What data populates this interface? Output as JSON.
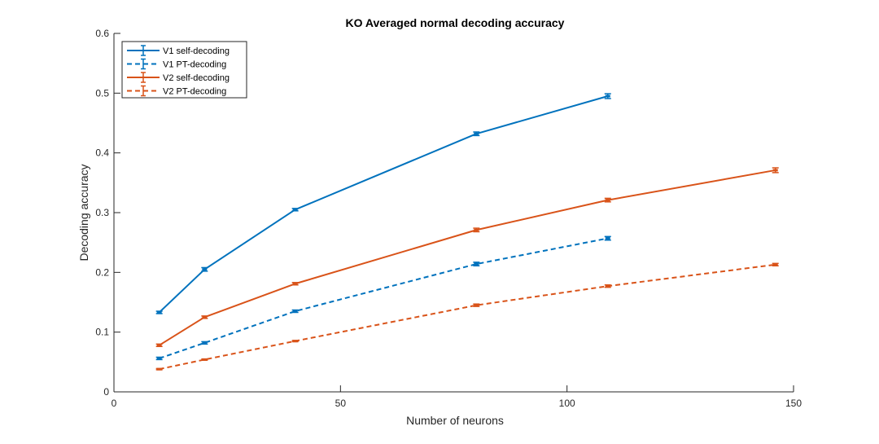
{
  "chart_data": {
    "type": "line",
    "title": "KO Averaged normal decoding accuracy",
    "xlabel": "Number of neurons",
    "ylabel": "Decoding accuracy",
    "xlim": [
      0,
      150
    ],
    "ylim": [
      0,
      0.6
    ],
    "xticks": [
      0,
      50,
      100,
      150
    ],
    "yticks": [
      0,
      0.1,
      0.2,
      0.3,
      0.4,
      0.5,
      0.6
    ],
    "xtick_labels": [
      "0",
      "50",
      "100",
      "150"
    ],
    "ytick_labels": [
      "0",
      "0.1",
      "0.2",
      "0.3",
      "0.4",
      "0.5",
      "0.6"
    ],
    "legend_position": "top-left",
    "grid": false,
    "series": [
      {
        "name": "V1 self-decoding",
        "color": "#0072BD",
        "dash": "solid",
        "x": [
          10,
          20,
          40,
          80,
          109
        ],
        "y": [
          0.133,
          0.205,
          0.305,
          0.432,
          0.495
        ],
        "err": [
          0.002,
          0.003,
          0.002,
          0.003,
          0.004
        ]
      },
      {
        "name": "V1 PT-decoding",
        "color": "#0072BD",
        "dash": "dashed",
        "x": [
          10,
          20,
          40,
          80,
          109
        ],
        "y": [
          0.056,
          0.082,
          0.135,
          0.214,
          0.257
        ],
        "err": [
          0.002,
          0.002,
          0.002,
          0.003,
          0.003
        ]
      },
      {
        "name": "V2 self-decoding",
        "color": "#D95319",
        "dash": "solid",
        "x": [
          10,
          20,
          40,
          80,
          109,
          146
        ],
        "y": [
          0.078,
          0.125,
          0.181,
          0.271,
          0.321,
          0.371
        ],
        "err": [
          0.002,
          0.002,
          0.002,
          0.003,
          0.003,
          0.004
        ]
      },
      {
        "name": "V2 PT-decoding",
        "color": "#D95319",
        "dash": "dashed",
        "x": [
          10,
          20,
          40,
          80,
          109,
          146
        ],
        "y": [
          0.038,
          0.054,
          0.085,
          0.145,
          0.177,
          0.213
        ],
        "err": [
          0.001,
          0.001,
          0.001,
          0.002,
          0.002,
          0.002
        ]
      }
    ]
  }
}
